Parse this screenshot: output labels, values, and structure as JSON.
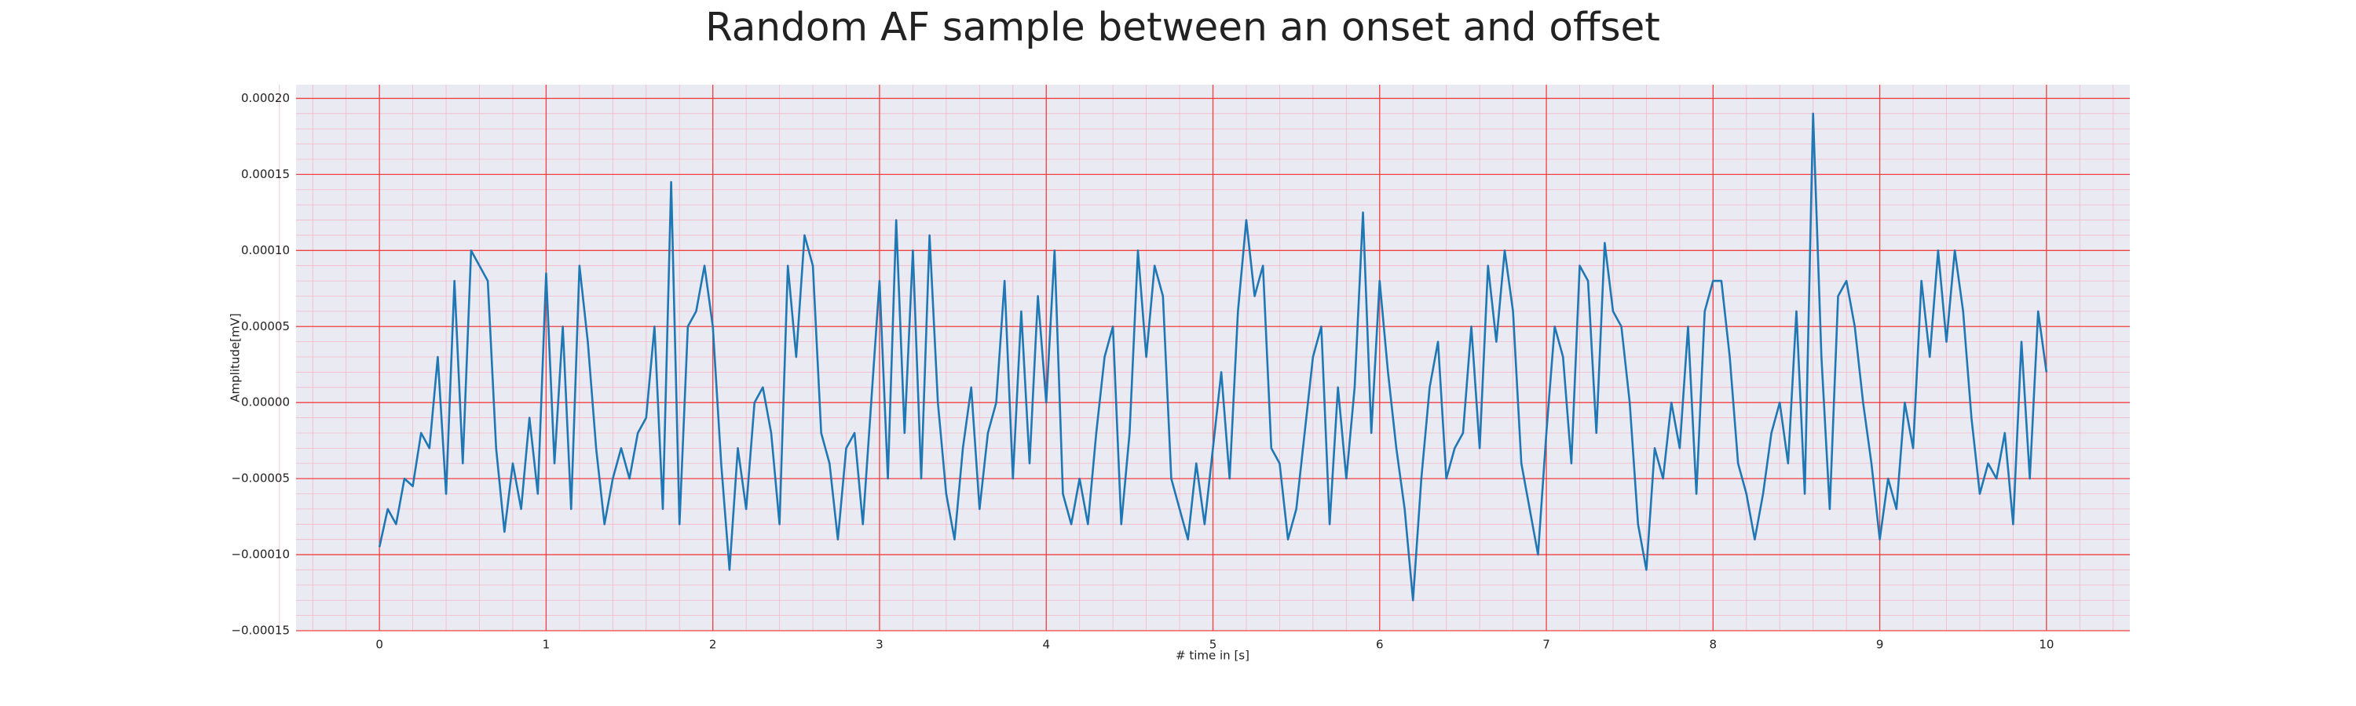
{
  "chart_data": {
    "type": "line",
    "title": "Random AF sample between an onset and offset",
    "xlabel": "# time in [s]",
    "ylabel": "Amplitude[mV]",
    "x": [
      0,
      0.05,
      0.1,
      0.15,
      0.2,
      0.25,
      0.3,
      0.35,
      0.4,
      0.45,
      0.5,
      0.55,
      0.6,
      0.65,
      0.7,
      0.75,
      0.8,
      0.85,
      0.9,
      0.95,
      1,
      1.05,
      1.1,
      1.15,
      1.2,
      1.25,
      1.3,
      1.35,
      1.4,
      1.45,
      1.5,
      1.55,
      1.6,
      1.65,
      1.7,
      1.75,
      1.8,
      1.85,
      1.9,
      1.95,
      2,
      2.05,
      2.1,
      2.15,
      2.2,
      2.25,
      2.3,
      2.35,
      2.4,
      2.45,
      2.5,
      2.55,
      2.6,
      2.65,
      2.7,
      2.75,
      2.8,
      2.85,
      2.9,
      2.95,
      3,
      3.05,
      3.1,
      3.15,
      3.2,
      3.25,
      3.3,
      3.35,
      3.4,
      3.45,
      3.5,
      3.55,
      3.6,
      3.65,
      3.7,
      3.75,
      3.8,
      3.85,
      3.9,
      3.95,
      4,
      4.05,
      4.1,
      4.15,
      4.2,
      4.25,
      4.3,
      4.35,
      4.4,
      4.45,
      4.5,
      4.55,
      4.6,
      4.65,
      4.7,
      4.75,
      4.8,
      4.85,
      4.9,
      4.95,
      5,
      5.05,
      5.1,
      5.15,
      5.2,
      5.25,
      5.3,
      5.35,
      5.4,
      5.45,
      5.5,
      5.55,
      5.6,
      5.65,
      5.7,
      5.75,
      5.8,
      5.85,
      5.9,
      5.95,
      6,
      6.05,
      6.1,
      6.15,
      6.2,
      6.25,
      6.3,
      6.35,
      6.4,
      6.45,
      6.5,
      6.55,
      6.6,
      6.65,
      6.7,
      6.75,
      6.8,
      6.85,
      6.9,
      6.95,
      7,
      7.05,
      7.1,
      7.15,
      7.2,
      7.25,
      7.3,
      7.35,
      7.4,
      7.45,
      7.5,
      7.55,
      7.6,
      7.65,
      7.7,
      7.75,
      7.8,
      7.85,
      7.9,
      7.95,
      8,
      8.05,
      8.1,
      8.15,
      8.2,
      8.25,
      8.3,
      8.35,
      8.4,
      8.45,
      8.5,
      8.55,
      8.6,
      8.65,
      8.7,
      8.75,
      8.8,
      8.85,
      8.9,
      8.95,
      9,
      9.05,
      9.1,
      9.15,
      9.2,
      9.25,
      9.3,
      9.35,
      9.4,
      9.45,
      9.5,
      9.55,
      9.6,
      9.65,
      9.7,
      9.75,
      9.8,
      9.85,
      9.9,
      9.95,
      10
    ],
    "values": [
      -9.5e-05,
      -7e-05,
      -8e-05,
      -5e-05,
      -5.5e-05,
      -2e-05,
      -3e-05,
      3e-05,
      -6e-05,
      8e-05,
      -4e-05,
      0.0001,
      9e-05,
      8e-05,
      -3e-05,
      -8.5e-05,
      -4e-05,
      -7e-05,
      -1e-05,
      -6e-05,
      8.5e-05,
      -4e-05,
      5e-05,
      -7e-05,
      9e-05,
      4e-05,
      -3e-05,
      -8e-05,
      -5e-05,
      -3e-05,
      -5e-05,
      -2e-05,
      -1e-05,
      5e-05,
      -7e-05,
      0.000145,
      -8e-05,
      5e-05,
      6e-05,
      9e-05,
      5e-05,
      -4e-05,
      -0.00011,
      -3e-05,
      -7e-05,
      0,
      1e-05,
      -2e-05,
      -8e-05,
      9e-05,
      3e-05,
      0.00011,
      9e-05,
      -2e-05,
      -4e-05,
      -9e-05,
      -3e-05,
      -2e-05,
      -8e-05,
      0,
      8e-05,
      -5e-05,
      0.00012,
      -2e-05,
      0.0001,
      -5e-05,
      0.00011,
      0,
      -6e-05,
      -9e-05,
      -3e-05,
      1e-05,
      -7e-05,
      -2e-05,
      0,
      8e-05,
      -5e-05,
      6e-05,
      -4e-05,
      7e-05,
      0,
      0.0001,
      -6e-05,
      -8e-05,
      -5e-05,
      -8e-05,
      -2e-05,
      3e-05,
      5e-05,
      -8e-05,
      -2e-05,
      0.0001,
      3e-05,
      9e-05,
      7e-05,
      -5e-05,
      -7e-05,
      -9e-05,
      -4e-05,
      -8e-05,
      -3e-05,
      2e-05,
      -5e-05,
      6e-05,
      0.00012,
      7e-05,
      9e-05,
      -3e-05,
      -4e-05,
      -9e-05,
      -7e-05,
      -2e-05,
      3e-05,
      5e-05,
      -8e-05,
      1e-05,
      -5e-05,
      1e-05,
      0.000125,
      -2e-05,
      8e-05,
      2e-05,
      -3e-05,
      -7e-05,
      -0.00013,
      -5e-05,
      1e-05,
      4e-05,
      -5e-05,
      -3e-05,
      -2e-05,
      5e-05,
      -3e-05,
      9e-05,
      4e-05,
      0.0001,
      6e-05,
      -4e-05,
      -7e-05,
      -0.0001,
      -2e-05,
      5e-05,
      3e-05,
      -4e-05,
      9e-05,
      8e-05,
      -2e-05,
      0.000105,
      6e-05,
      5e-05,
      0,
      -8e-05,
      -0.00011,
      -3e-05,
      -5e-05,
      0,
      -3e-05,
      5e-05,
      -6e-05,
      6e-05,
      8e-05,
      8e-05,
      3e-05,
      -4e-05,
      -6e-05,
      -9e-05,
      -6e-05,
      -2e-05,
      0,
      -4e-05,
      6e-05,
      -6e-05,
      0.00019,
      3e-05,
      -7e-05,
      7e-05,
      8e-05,
      5e-05,
      0,
      -4e-05,
      -9e-05,
      -5e-05,
      -7e-05,
      0,
      -3e-05,
      8e-05,
      3e-05,
      0.0001,
      4e-05,
      0.0001,
      6e-05,
      -1e-05,
      -6e-05,
      -4e-05,
      -5e-05,
      -2e-05,
      -8e-05,
      4e-05,
      -5e-05,
      6e-05,
      2e-05
    ],
    "color": "#1f77b4",
    "xlim": [
      -0.5,
      10.5
    ],
    "xticks": [
      0,
      1,
      2,
      3,
      4,
      5,
      6,
      7,
      8,
      9,
      10
    ],
    "ylim": [
      -0.00015,
      0.000209
    ],
    "yticks": [
      {
        "value": -0.00015,
        "label": "−0.00015"
      },
      {
        "value": -0.0001,
        "label": "−0.00010"
      },
      {
        "value": -5e-05,
        "label": "−0.00005"
      },
      {
        "value": 0,
        "label": "0.00000"
      },
      {
        "value": 5e-05,
        "label": "0.00005"
      },
      {
        "value": 0.0001,
        "label": "0.00010"
      },
      {
        "value": 0.00015,
        "label": "0.00015"
      },
      {
        "value": 0.0002,
        "label": "0.00020"
      }
    ],
    "grid": true,
    "minor_grid": true
  }
}
